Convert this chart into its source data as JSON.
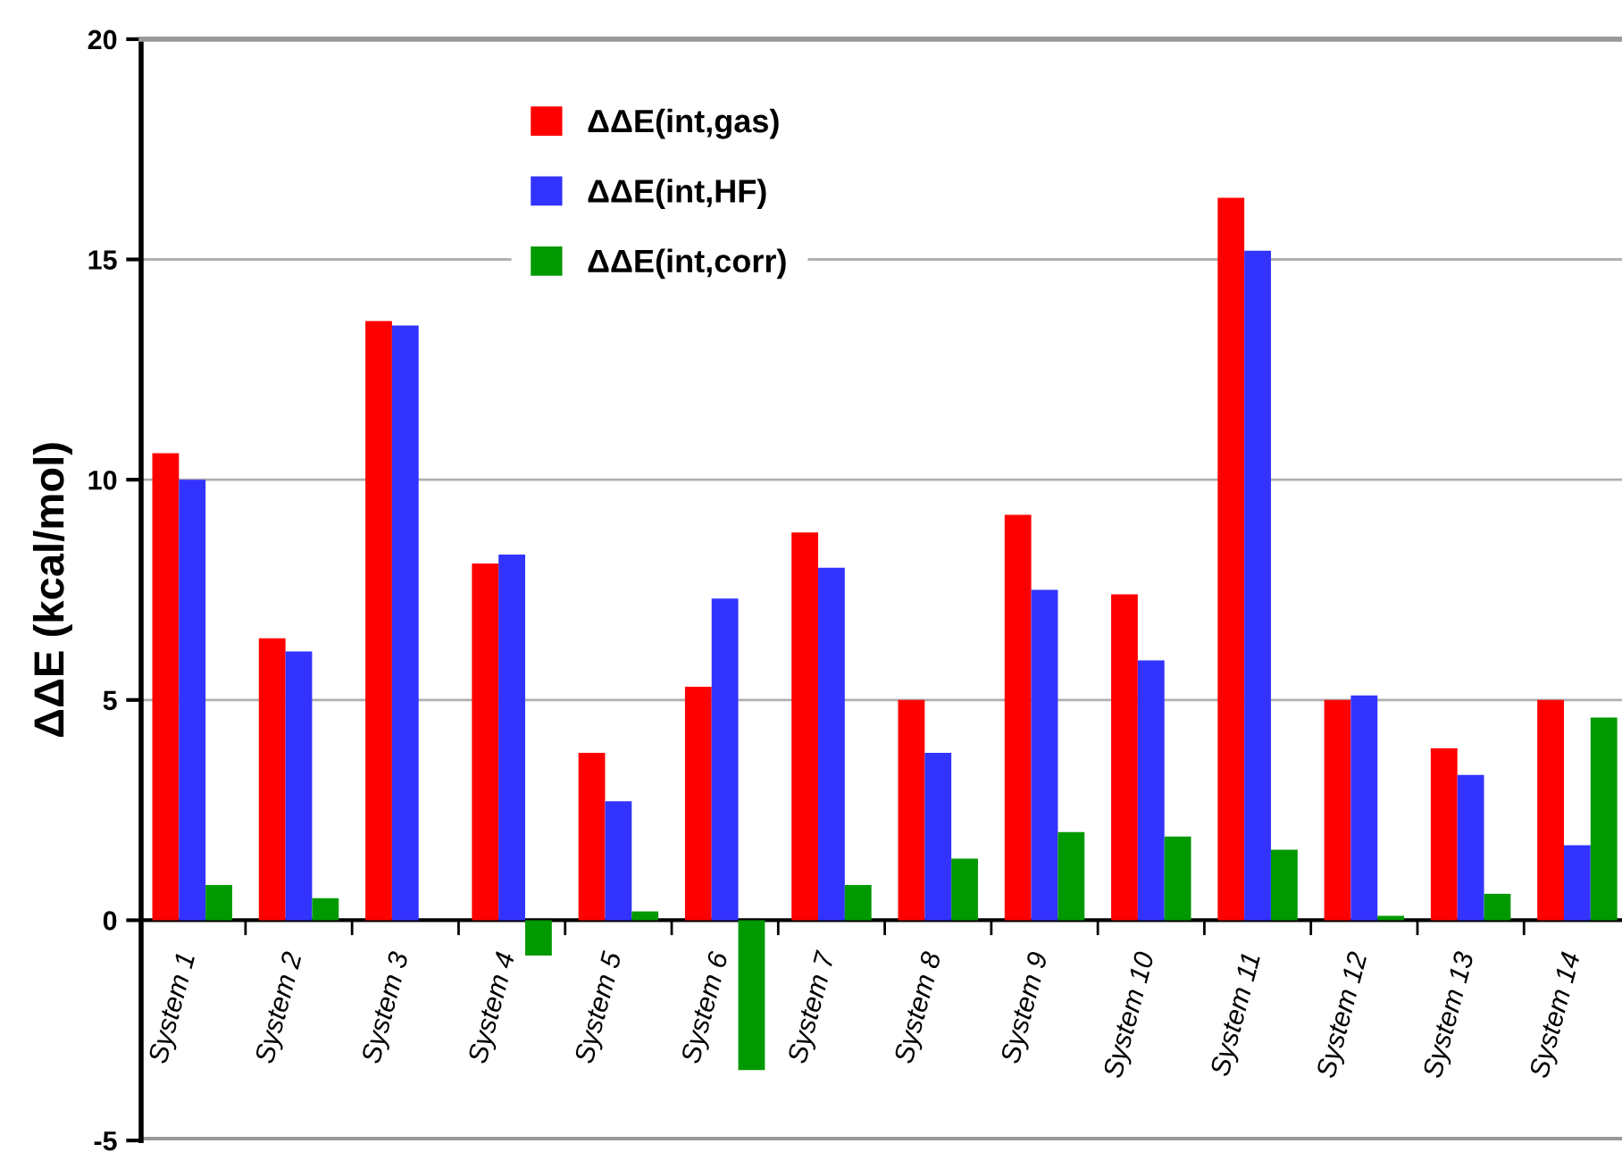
{
  "chart_data": {
    "type": "bar",
    "ylabel": "ΔΔE (kcal/mol)",
    "categories": [
      "System 1",
      "System 2",
      "System 3",
      "System 4",
      "System 5",
      "System 6",
      "System 7",
      "System 8",
      "System 9",
      "System 10",
      "System 11",
      "System 12",
      "System 13",
      "System 14"
    ],
    "series": [
      {
        "name": "ΔΔE(int,gas)",
        "color": "#ff0000",
        "values": [
          10.6,
          6.4,
          13.6,
          8.1,
          3.8,
          5.3,
          8.8,
          5.0,
          9.2,
          7.4,
          16.4,
          5.0,
          3.9,
          5.0
        ]
      },
      {
        "name": "ΔΔE(int,HF)",
        "color": "#3333ff",
        "values": [
          10.0,
          6.1,
          13.5,
          8.3,
          2.7,
          7.3,
          8.0,
          3.8,
          7.5,
          5.9,
          15.2,
          5.1,
          3.3,
          1.7
        ]
      },
      {
        "name": "ΔΔE(int,corr)",
        "color": "#009900",
        "values": [
          0.8,
          0.5,
          0,
          -0.8,
          0.2,
          -3.4,
          0.8,
          1.4,
          2.0,
          1.9,
          1.6,
          0.1,
          0.6,
          4.6
        ]
      }
    ],
    "ylim": [
      -5,
      20
    ],
    "yticks": [
      -5,
      0,
      5,
      10,
      15,
      20
    ],
    "grid": "y",
    "legend": "top"
  }
}
